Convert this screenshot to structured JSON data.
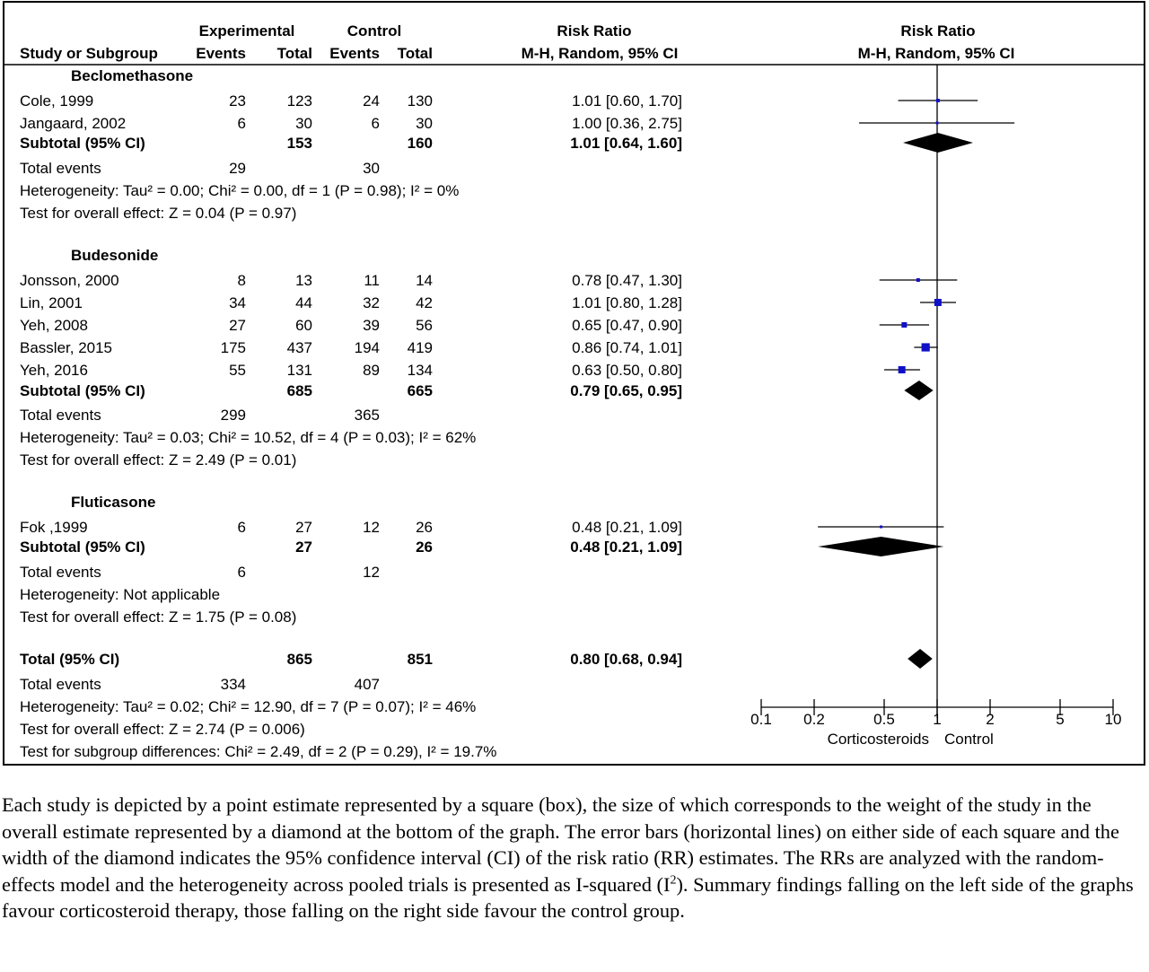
{
  "chart_data": {
    "type": "forest",
    "columns": {
      "group_exp": "Experimental",
      "group_ctl": "Control",
      "study": "Study or Subgroup",
      "events": "Events",
      "total": "Total",
      "rr_title": "Risk Ratio",
      "rr_method": "M-H, Random, 95% CI"
    },
    "x_axis": {
      "scale": "log",
      "ticks": [
        "0.1",
        "0.2",
        "0.5",
        "1",
        "2",
        "5",
        "10"
      ],
      "tick_values": [
        0.1,
        0.2,
        0.5,
        1,
        2,
        5,
        10
      ],
      "left_label": "Corticosteroids",
      "right_label": "Control"
    },
    "subgroups": [
      {
        "name": "Beclomethasone",
        "studies": [
          {
            "name": "Cole, 1999",
            "e_events": "23",
            "e_total": "123",
            "c_events": "24",
            "c_total": "130",
            "ci_text": "1.01 [0.60, 1.70]",
            "rr": 1.01,
            "lo": 0.6,
            "hi": 1.7,
            "weight": 1
          },
          {
            "name": "Jangaard, 2002",
            "e_events": "6",
            "e_total": "30",
            "c_events": "6",
            "c_total": "30",
            "ci_text": "1.00 [0.36, 2.75]",
            "rr": 1.0,
            "lo": 0.36,
            "hi": 2.75,
            "weight": 0.5
          }
        ],
        "subtotal": {
          "label": "Subtotal (95% CI)",
          "e_total": "153",
          "c_total": "160",
          "ci_text": "1.01 [0.64, 1.60]",
          "rr": 1.01,
          "lo": 0.64,
          "hi": 1.6
        },
        "total_events": {
          "label": "Total events",
          "e": "29",
          "c": "30"
        },
        "heterogeneity": "Heterogeneity: Tau² = 0.00; Chi² = 0.00, df = 1 (P = 0.98); I² = 0%",
        "overall_effect": "Test for overall effect: Z = 0.04 (P = 0.97)"
      },
      {
        "name": "Budesonide",
        "studies": [
          {
            "name": "Jonsson, 2000",
            "e_events": "8",
            "e_total": "13",
            "c_events": "11",
            "c_total": "14",
            "ci_text": "0.78 [0.47, 1.30]",
            "rr": 0.78,
            "lo": 0.47,
            "hi": 1.3,
            "weight": 1
          },
          {
            "name": "Lin, 2001",
            "e_events": "34",
            "e_total": "44",
            "c_events": "32",
            "c_total": "42",
            "ci_text": "1.01 [0.80, 1.28]",
            "rr": 1.01,
            "lo": 0.8,
            "hi": 1.28,
            "weight": 3
          },
          {
            "name": "Yeh, 2008",
            "e_events": "27",
            "e_total": "60",
            "c_events": "39",
            "c_total": "56",
            "ci_text": "0.65 [0.47, 0.90]",
            "rr": 0.65,
            "lo": 0.47,
            "hi": 0.9,
            "weight": 2
          },
          {
            "name": "Bassler, 2015",
            "e_events": "175",
            "e_total": "437",
            "c_events": "194",
            "c_total": "419",
            "ci_text": "0.86 [0.74, 1.01]",
            "rr": 0.86,
            "lo": 0.74,
            "hi": 1.01,
            "weight": 3.6
          },
          {
            "name": "Yeh, 2016",
            "e_events": "55",
            "e_total": "131",
            "c_events": "89",
            "c_total": "134",
            "ci_text": "0.63 [0.50, 0.80]",
            "rr": 0.63,
            "lo": 0.5,
            "hi": 0.8,
            "weight": 3
          }
        ],
        "subtotal": {
          "label": "Subtotal (95% CI)",
          "e_total": "685",
          "c_total": "665",
          "ci_text": "0.79 [0.65, 0.95]",
          "rr": 0.79,
          "lo": 0.65,
          "hi": 0.95
        },
        "total_events": {
          "label": "Total events",
          "e": "299",
          "c": "365"
        },
        "heterogeneity": "Heterogeneity: Tau² = 0.03; Chi² = 10.52, df = 4 (P = 0.03); I² = 62%",
        "overall_effect": "Test for overall effect: Z = 2.49 (P = 0.01)"
      },
      {
        "name": "Fluticasone",
        "studies": [
          {
            "name": "Fok ,1999",
            "e_events": "6",
            "e_total": "27",
            "c_events": "12",
            "c_total": "26",
            "ci_text": "0.48 [0.21, 1.09]",
            "rr": 0.48,
            "lo": 0.21,
            "hi": 1.09,
            "weight": 0.5
          }
        ],
        "subtotal": {
          "label": "Subtotal (95% CI)",
          "e_total": "27",
          "c_total": "26",
          "ci_text": "0.48 [0.21, 1.09]",
          "rr": 0.48,
          "lo": 0.21,
          "hi": 1.09
        },
        "total_events": {
          "label": "Total events",
          "e": "6",
          "c": "12"
        },
        "heterogeneity": "Heterogeneity: Not applicable",
        "overall_effect": "Test for overall effect: Z = 1.75 (P = 0.08)"
      }
    ],
    "overall": {
      "label": "Total (95% CI)",
      "e_total": "865",
      "c_total": "851",
      "ci_text": "0.80 [0.68, 0.94]",
      "rr": 0.8,
      "lo": 0.68,
      "hi": 0.94,
      "total_events": {
        "label": "Total events",
        "e": "334",
        "c": "407"
      },
      "heterogeneity": "Heterogeneity: Tau² = 0.02; Chi² = 12.90, df = 7 (P = 0.07); I² = 46%",
      "overall_effect": "Test for overall effect: Z = 2.74 (P = 0.006)",
      "subgroup_differences": "Test for subgroup differences: Chi² = 2.49, df = 2 (P = 0.29), I² = 19.7%"
    },
    "colors": {
      "marker": "#1010c8",
      "ink": "#000000"
    }
  },
  "caption": {
    "main": "Each study is depicted by a point estimate represented by a square (box), the size of which corresponds to the weight of the study in the overall estimate represented by a diamond at the bottom of the graph. The error bars (horizontal lines) on either side of each square and the width of the diamond indicates the 95% confidence interval (CI) of the risk ratio (RR) estimates. The RRs are analyzed with the random- effects model and the heterogeneity across pooled trials is presented as I-squared (I",
    "sup": "2",
    "tail": "). Summary findings falling on the left side of the graphs favour corticosteroid therapy, those falling on the right side favour the control group."
  }
}
